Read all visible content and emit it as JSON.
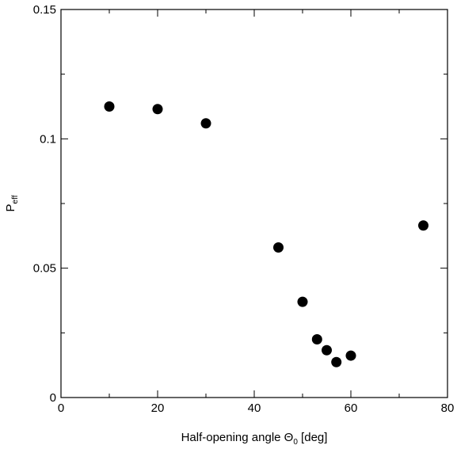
{
  "chart_data": {
    "type": "scatter",
    "xlabel": "Half-opening angle Θ₀ [deg]",
    "ylabel": "Peff",
    "xlim": [
      0,
      80
    ],
    "ylim": [
      0,
      0.15
    ],
    "x_ticks": [
      "0",
      "20",
      "40",
      "60",
      "80"
    ],
    "y_ticks": [
      "0",
      "0.05",
      "0.1",
      "0.15"
    ],
    "grid": false,
    "legend": "none",
    "marker_color": "#000000",
    "series": [
      {
        "points": [
          {
            "x": 10,
            "y": 0.1125
          },
          {
            "x": 20,
            "y": 0.1115
          },
          {
            "x": 30,
            "y": 0.106
          },
          {
            "x": 45,
            "y": 0.058
          },
          {
            "x": 50,
            "y": 0.037
          },
          {
            "x": 53,
            "y": 0.0225
          },
          {
            "x": 55,
            "y": 0.0183
          },
          {
            "x": 57,
            "y": 0.0137
          },
          {
            "x": 60,
            "y": 0.0162
          },
          {
            "x": 75,
            "y": 0.0665
          }
        ]
      }
    ]
  }
}
